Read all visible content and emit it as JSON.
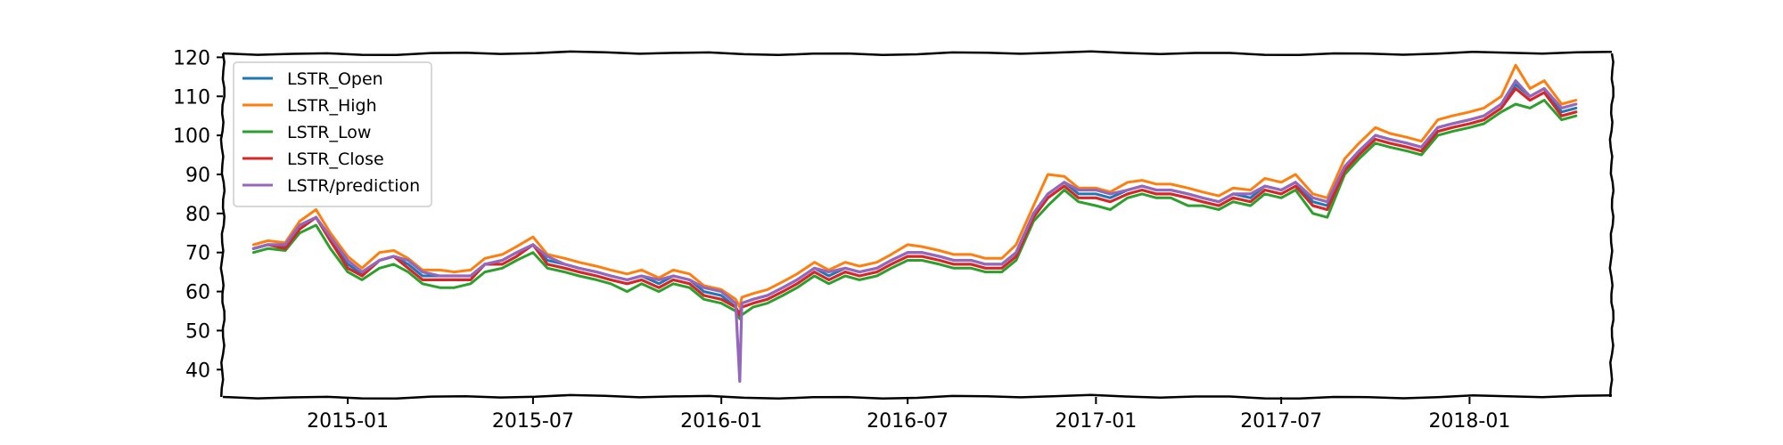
{
  "chart_data": {
    "type": "line",
    "title": "",
    "xlabel": "",
    "ylabel": "",
    "grid": false,
    "legend_position": "top-left",
    "xlim": [
      "2014-09-01",
      "2018-05-20"
    ],
    "ylim": [
      33,
      121
    ],
    "x_ticks": [
      "2015-01",
      "2015-07",
      "2016-01",
      "2016-07",
      "2017-01",
      "2017-07",
      "2018-01"
    ],
    "y_ticks": [
      40,
      50,
      60,
      70,
      80,
      90,
      100,
      110,
      120
    ],
    "x": [
      "2014-10-01",
      "2014-10-15",
      "2014-11-01",
      "2014-11-15",
      "2014-12-01",
      "2014-12-15",
      "2015-01-01",
      "2015-01-15",
      "2015-02-01",
      "2015-02-15",
      "2015-03-01",
      "2015-03-15",
      "2015-04-01",
      "2015-04-15",
      "2015-05-01",
      "2015-05-15",
      "2015-06-01",
      "2015-06-15",
      "2015-07-01",
      "2015-07-15",
      "2015-08-01",
      "2015-08-15",
      "2015-09-01",
      "2015-09-15",
      "2015-10-01",
      "2015-10-15",
      "2015-11-01",
      "2015-11-15",
      "2015-12-01",
      "2015-12-15",
      "2016-01-01",
      "2016-01-15",
      "2016-01-19",
      "2016-01-21",
      "2016-02-01",
      "2016-02-15",
      "2016-03-01",
      "2016-03-15",
      "2016-04-01",
      "2016-04-15",
      "2016-05-01",
      "2016-05-15",
      "2016-06-01",
      "2016-06-15",
      "2016-07-01",
      "2016-07-15",
      "2016-08-01",
      "2016-08-15",
      "2016-09-01",
      "2016-09-15",
      "2016-10-01",
      "2016-10-15",
      "2016-11-01",
      "2016-11-15",
      "2016-12-01",
      "2016-12-15",
      "2017-01-01",
      "2017-01-15",
      "2017-02-01",
      "2017-02-15",
      "2017-03-01",
      "2017-03-15",
      "2017-04-01",
      "2017-04-15",
      "2017-05-01",
      "2017-05-15",
      "2017-06-01",
      "2017-06-15",
      "2017-07-01",
      "2017-07-15",
      "2017-08-01",
      "2017-08-15",
      "2017-09-01",
      "2017-09-15",
      "2017-10-01",
      "2017-10-15",
      "2017-11-01",
      "2017-11-15",
      "2017-12-01",
      "2017-12-15",
      "2018-01-01",
      "2018-01-15",
      "2018-02-01",
      "2018-02-15",
      "2018-03-01",
      "2018-03-15",
      "2018-04-01",
      "2018-04-15"
    ],
    "series": [
      {
        "name": "LSTR_Open",
        "color": "#1f77b4",
        "values": [
          71,
          72,
          71.5,
          76,
          79,
          73,
          67,
          64.5,
          68,
          69,
          67,
          64,
          64,
          64,
          64,
          67,
          68,
          70,
          72,
          68,
          67,
          66,
          65,
          64,
          63,
          64,
          62,
          64,
          63,
          60,
          59,
          56,
          54,
          57,
          58,
          59,
          61,
          63,
          66,
          64,
          66,
          65,
          66,
          68,
          70,
          70,
          69,
          68,
          68,
          67,
          67,
          70,
          80,
          85,
          88,
          85,
          85,
          84,
          86,
          87,
          86,
          86,
          85,
          84,
          83,
          85,
          84,
          87,
          86,
          88,
          83,
          82,
          92,
          96,
          100,
          99,
          98,
          97,
          102,
          103,
          104,
          105,
          108,
          113,
          110,
          112,
          106,
          107
        ]
      },
      {
        "name": "LSTR_High",
        "color": "#ff7f0e",
        "values": [
          72,
          73,
          72.5,
          78,
          81,
          75,
          69,
          66,
          70,
          70.5,
          68.5,
          65.5,
          65.5,
          65,
          65.5,
          68.5,
          69.5,
          71.5,
          74,
          69.5,
          68.5,
          67.5,
          66.5,
          65.5,
          64.5,
          65.5,
          63.5,
          65.5,
          64.5,
          61.5,
          60.5,
          58,
          56,
          58.5,
          59.5,
          60.5,
          62.5,
          64.5,
          67.5,
          65.5,
          67.5,
          66.5,
          67.5,
          69.5,
          72,
          71.5,
          70.5,
          69.5,
          69.5,
          68.5,
          68.5,
          72,
          82,
          90,
          89.5,
          86.5,
          86.5,
          85.5,
          88,
          88.5,
          87.5,
          87.5,
          86.5,
          85.5,
          84.5,
          86.5,
          86,
          89,
          88,
          90,
          85,
          84,
          94,
          98,
          102,
          100.5,
          99.5,
          98.5,
          104,
          105,
          106,
          107,
          110,
          118,
          112,
          114,
          108,
          109
        ]
      },
      {
        "name": "LSTR_Low",
        "color": "#2ca02c",
        "values": [
          70,
          71,
          70.5,
          75,
          77,
          71,
          65,
          63,
          66,
          67,
          65,
          62,
          61,
          61,
          62,
          65,
          66,
          68,
          70,
          66,
          65,
          64,
          63,
          62,
          60,
          62,
          60,
          62,
          61,
          58,
          57,
          55,
          53,
          54,
          56,
          57,
          59,
          61,
          64,
          62,
          64,
          63,
          64,
          66,
          68,
          68,
          67,
          66,
          66,
          65,
          65,
          68,
          78,
          82,
          86,
          83,
          82,
          81,
          84,
          85,
          84,
          84,
          82,
          82,
          81,
          83,
          82,
          85,
          84,
          86,
          80,
          79,
          90,
          94,
          98,
          97,
          96,
          95,
          100,
          101,
          102,
          103,
          106,
          108,
          107,
          109,
          104,
          105
        ]
      },
      {
        "name": "LSTR_Close",
        "color": "#d62728",
        "values": [
          71,
          72,
          71,
          76,
          79,
          73,
          66,
          64,
          68,
          69,
          66,
          63,
          63,
          63,
          63,
          67,
          67,
          69,
          72,
          67,
          66,
          65,
          64,
          63,
          62,
          63,
          61,
          63,
          62,
          59,
          58,
          56,
          54,
          56,
          57,
          58,
          60,
          62,
          65,
          63,
          65,
          64,
          65,
          67,
          69,
          69,
          68,
          67,
          67,
          66,
          66,
          69,
          79,
          84,
          87,
          84,
          84,
          83,
          85,
          86,
          85,
          85,
          84,
          83,
          82,
          84,
          83,
          86,
          85,
          87,
          82,
          81,
          91,
          95,
          99,
          98,
          97,
          96,
          101,
          102,
          103,
          104,
          107,
          112,
          109,
          111,
          105,
          106
        ]
      },
      {
        "name": "LSTR/prediction",
        "color": "#9467bd",
        "values": [
          71,
          72,
          72,
          77,
          79,
          74,
          68,
          65,
          68,
          69,
          68,
          65,
          64,
          64,
          64,
          67,
          68,
          70,
          72,
          69,
          67,
          66,
          65,
          64,
          63,
          64,
          63,
          64,
          63,
          61,
          60,
          57,
          37,
          57,
          58,
          59,
          61,
          63,
          66,
          65,
          66,
          65,
          66,
          68,
          70,
          70,
          69,
          68,
          68,
          67,
          67,
          70,
          80,
          85,
          88,
          86,
          86,
          85,
          86,
          87,
          86,
          86,
          85,
          84,
          83,
          85,
          85,
          87,
          86,
          88,
          84,
          83,
          92,
          96,
          100,
          99,
          98,
          97,
          102,
          103,
          104,
          105,
          108,
          114,
          110,
          112,
          107,
          108
        ]
      }
    ]
  }
}
